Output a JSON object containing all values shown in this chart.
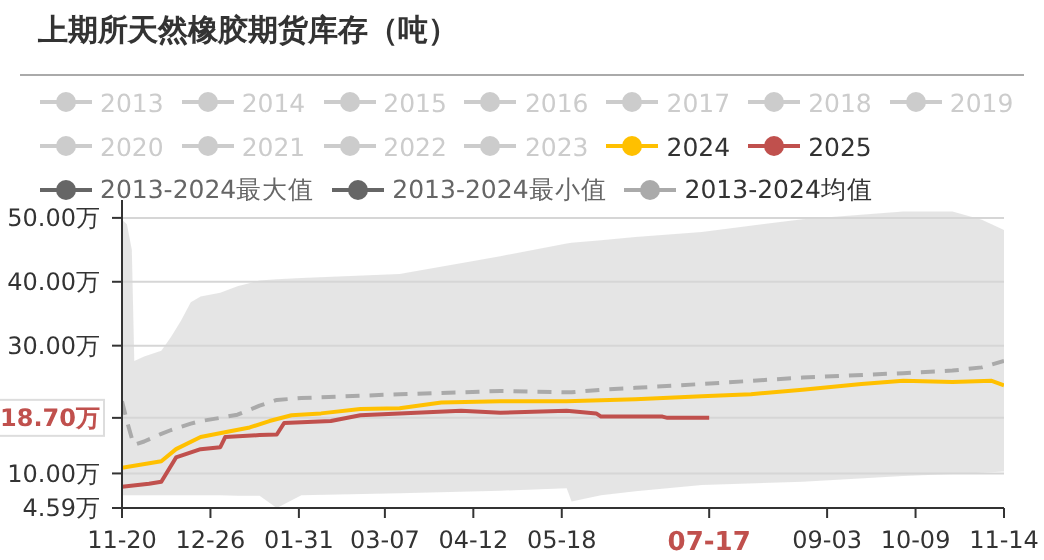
{
  "chart_data": {
    "type": "line",
    "title": "上期所天然橡胶期货库存（吨）",
    "legend": "top",
    "grid": "y",
    "xlim": [
      "2024-11-20",
      "2025-11-14"
    ],
    "xticks": [
      {
        "value": "2024-11-20",
        "label": "11-20"
      },
      {
        "value": "2024-12-26",
        "label": "12-26"
      },
      {
        "value": "2025-01-31",
        "label": "01-31"
      },
      {
        "value": "2025-03-07",
        "label": "03-07"
      },
      {
        "value": "2025-04-12",
        "label": "04-12"
      },
      {
        "value": "2025-05-18",
        "label": "05-18"
      },
      {
        "value": "2025-07-17",
        "label": "07-17"
      },
      {
        "value": "2025-09-03",
        "label": "09-03"
      },
      {
        "value": "2025-10-09",
        "label": "10-09"
      },
      {
        "value": "2025-11-14",
        "label": "11-14"
      }
    ],
    "ylim": [
      4.59,
      52.8
    ],
    "yticks": [
      {
        "value": 4.59,
        "label": "4.59万"
      },
      {
        "value": 10,
        "label": "10.00万"
      },
      {
        "value": 18.7,
        "label": "18.70万"
      },
      {
        "value": 30,
        "label": "30.00万"
      },
      {
        "value": 40,
        "label": "40.00万"
      },
      {
        "value": 50,
        "label": "50.00万"
      }
    ],
    "series": [
      {
        "name": "2013",
        "color": "#cccccc"
      },
      {
        "name": "2014",
        "color": "#cccccc"
      },
      {
        "name": "2015",
        "color": "#cccccc"
      },
      {
        "name": "2016",
        "color": "#cccccc"
      },
      {
        "name": "2017",
        "color": "#cccccc"
      },
      {
        "name": "2018",
        "color": "#cccccc"
      },
      {
        "name": "2019",
        "color": "#cccccc"
      },
      {
        "name": "2020",
        "color": "#cccccc"
      },
      {
        "name": "2021",
        "color": "#cccccc"
      },
      {
        "name": "2022",
        "color": "#cccccc"
      },
      {
        "name": "2023",
        "color": "#cccccc"
      },
      {
        "name": "2024",
        "color": "#ffc000",
        "x": [
          "2024-11-20",
          "2024-12-06",
          "2024-12-12",
          "2024-12-22",
          "2025-01-03",
          "2025-01-11",
          "2025-01-19",
          "2025-01-28",
          "2025-02-09",
          "2025-02-25",
          "2025-03-13",
          "2025-03-30",
          "2025-04-23",
          "2025-05-20",
          "2025-06-17",
          "2025-07-14",
          "2025-08-03",
          "2025-08-24",
          "2025-09-17",
          "2025-10-04",
          "2025-10-24",
          "2025-11-09",
          "2025-11-14"
        ],
        "values": [
          10.9,
          11.9,
          13.8,
          15.7,
          16.6,
          17.2,
          18.2,
          19.1,
          19.4,
          20.1,
          20.2,
          21.1,
          21.3,
          21.3,
          21.6,
          22.1,
          22.4,
          23.1,
          24.0,
          24.5,
          24.3,
          24.5,
          23.8
        ]
      },
      {
        "name": "2025",
        "color": "#c0504d",
        "x": [
          "2024-11-20",
          "2024-12-01",
          "2024-12-06",
          "2024-12-12",
          "2024-12-22",
          "2024-12-30",
          "2025-01-01",
          "2025-01-15",
          "2025-01-22",
          "2025-01-25",
          "2025-02-13",
          "2025-02-25",
          "2025-03-13",
          "2025-04-07",
          "2025-04-23",
          "2025-05-20",
          "2025-06-01",
          "2025-06-03",
          "2025-06-28",
          "2025-06-30",
          "2025-07-17"
        ],
        "values": [
          7.9,
          8.4,
          8.7,
          12.5,
          13.8,
          14.1,
          15.7,
          16.0,
          16.1,
          17.9,
          18.2,
          19.1,
          19.4,
          19.8,
          19.5,
          19.8,
          19.4,
          18.9,
          18.9,
          18.7,
          18.7
        ]
      },
      {
        "name": "2013-2024最大值",
        "color": "#666666"
      },
      {
        "name": "2013-2024最小值",
        "color": "#666666"
      },
      {
        "name": "2013-2024均值",
        "color": "#aaaaaa",
        "line_style": "dashed",
        "x": [
          "2024-11-20",
          "2024-11-22",
          "2024-11-24",
          "2024-11-25",
          "2024-11-29",
          "2024-12-06",
          "2024-12-10",
          "2024-12-14",
          "2024-12-18",
          "2024-12-22",
          "2024-12-30",
          "2025-01-06",
          "2025-01-15",
          "2025-01-22",
          "2025-02-01",
          "2025-03-13",
          "2025-04-23",
          "2025-05-20",
          "2025-05-22",
          "2025-06-03",
          "2025-06-17",
          "2025-07-14",
          "2025-08-24",
          "2025-10-04",
          "2025-10-24",
          "2025-11-05",
          "2025-11-14"
        ],
        "values": [
          21.3,
          18.2,
          15.5,
          14.5,
          15.0,
          16.2,
          16.8,
          17.3,
          17.8,
          18.2,
          18.7,
          19.2,
          20.6,
          21.5,
          21.8,
          22.4,
          22.9,
          22.7,
          22.7,
          23.1,
          23.4,
          24.0,
          25.0,
          25.7,
          26.1,
          26.6,
          27.6
        ],
        "lower": [
          6.6,
          6.6,
          6.6,
          6.6,
          6.6,
          6.6,
          6.6,
          6.6,
          6.6,
          6.6,
          6.6,
          6.5,
          6.5,
          4.6,
          6.6,
          6.9,
          7.3,
          7.7,
          5.6,
          6.6,
          7.2,
          8.2,
          8.7,
          9.6,
          9.9,
          10.1,
          10.3
        ],
        "upper": [
          49.7,
          49.0,
          45.0,
          27.6,
          28.3,
          29.2,
          31.4,
          33.9,
          36.8,
          37.7,
          38.3,
          39.3,
          40.2,
          40.4,
          40.6,
          41.2,
          44.0,
          46.0,
          46.1,
          46.5,
          47.0,
          47.8,
          49.8,
          51.0,
          51.0,
          49.7,
          48.1
        ]
      }
    ]
  }
}
